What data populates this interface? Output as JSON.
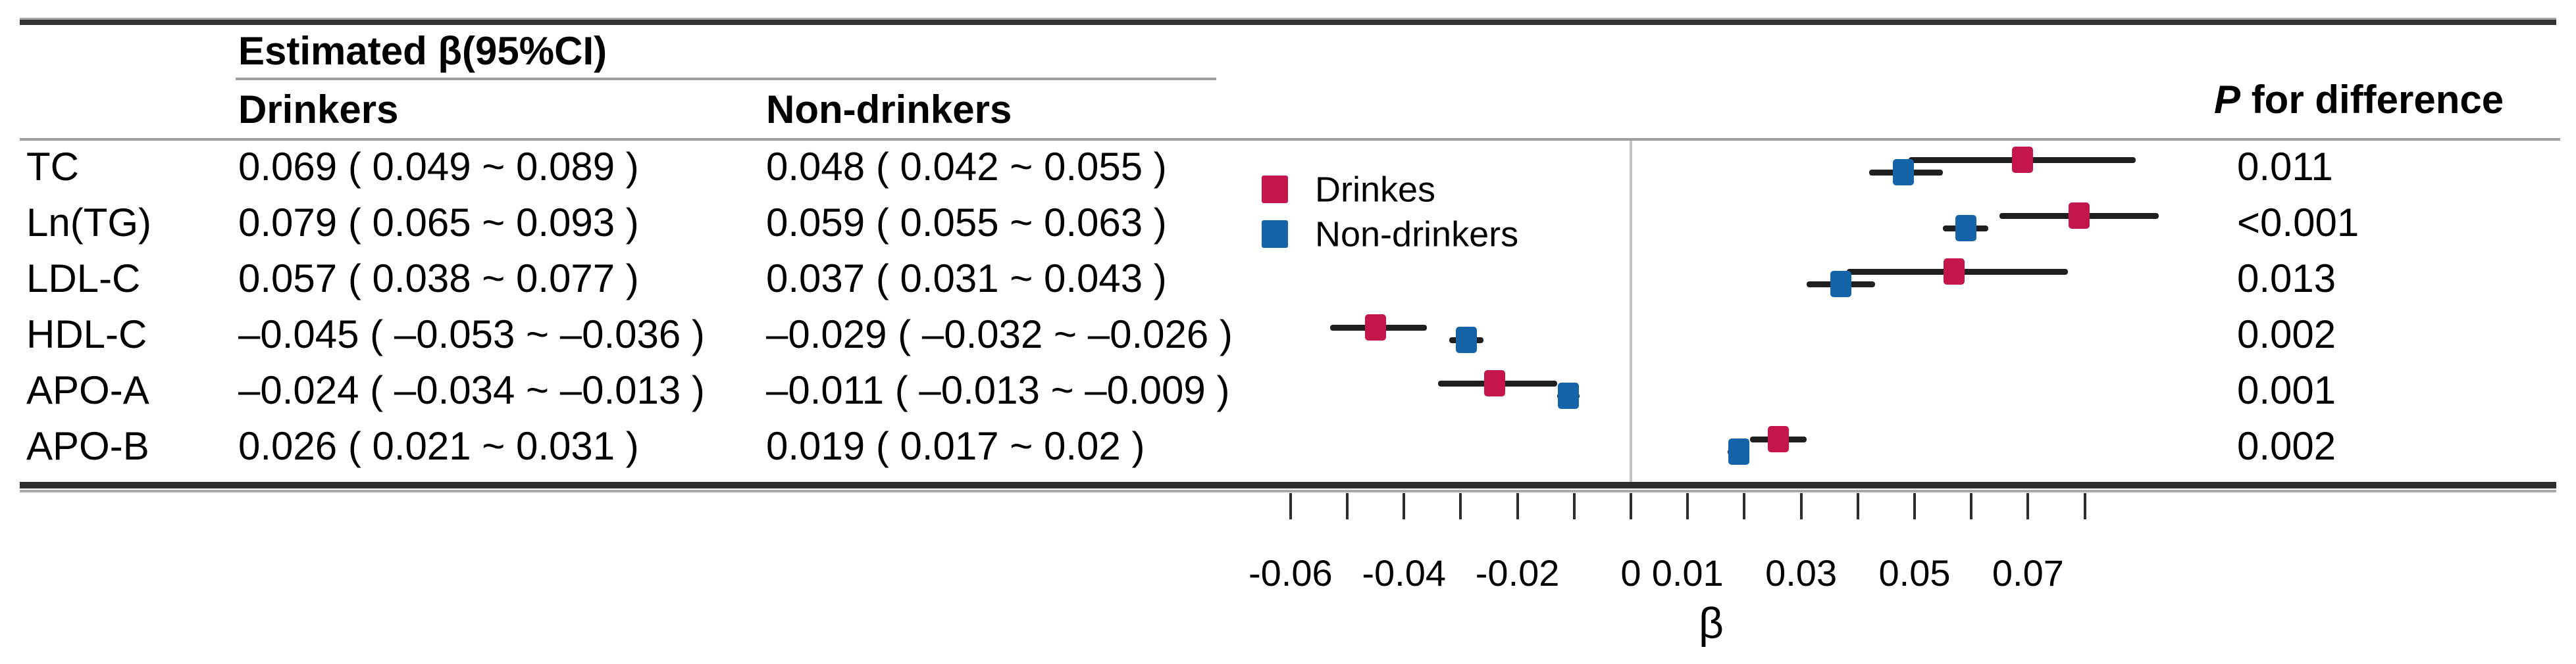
{
  "table": {
    "group_header": "Estimated β(95%CI)",
    "col_drinkers": "Drinkers",
    "col_nondrinkers": "Non-drinkers",
    "p_header_italic": "P",
    "p_header_rest": " for difference",
    "rows": [
      {
        "label": "TC",
        "drinkers": "0.069 ( 0.049 ~ 0.089 )",
        "nondrinkers": "0.048 ( 0.042 ~ 0.055 )",
        "p": "0.011"
      },
      {
        "label": "Ln(TG)",
        "drinkers": "0.079 ( 0.065 ~ 0.093 )",
        "nondrinkers": "0.059 ( 0.055 ~ 0.063 )",
        "p": "<0.001"
      },
      {
        "label": "LDL-C",
        "drinkers": "0.057 ( 0.038 ~ 0.077 )",
        "nondrinkers": "0.037 ( 0.031 ~ 0.043 )",
        "p": "0.013"
      },
      {
        "label": "HDL-C",
        "drinkers": "–0.045 ( –0.053 ~ –0.036 )",
        "nondrinkers": "–0.029 ( –0.032 ~ –0.026 )",
        "p": "0.002"
      },
      {
        "label": "APO-A",
        "drinkers": "–0.024 ( –0.034 ~ –0.013 )",
        "nondrinkers": "–0.011 ( –0.013 ~ –0.009 )",
        "p": "0.001"
      },
      {
        "label": "APO-B",
        "drinkers": "0.026 ( 0.021 ~ 0.031 )",
        "nondrinkers": "0.019 ( 0.017 ~ 0.02 )",
        "p": "0.002"
      }
    ]
  },
  "legend": {
    "drinkers": "Drinkes",
    "nondrinkers": "Non-drinkers"
  },
  "colors": {
    "drinkers": "#c4164a",
    "nondrinkers": "#1563a8",
    "whisker": "#1f1f1f",
    "refline": "#c4c4c4"
  },
  "chart_data": {
    "type": "forest",
    "title": "",
    "xlabel": "β",
    "categories": [
      "TC",
      "Ln(TG)",
      "LDL-C",
      "HDL-C",
      "APO-A",
      "APO-B"
    ],
    "series": [
      {
        "name": "Drinkes",
        "color": "#c4164a",
        "points": [
          {
            "beta": 0.069,
            "lo": 0.049,
            "hi": 0.089
          },
          {
            "beta": 0.079,
            "lo": 0.065,
            "hi": 0.093
          },
          {
            "beta": 0.057,
            "lo": 0.038,
            "hi": 0.077
          },
          {
            "beta": -0.045,
            "lo": -0.053,
            "hi": -0.036
          },
          {
            "beta": -0.024,
            "lo": -0.034,
            "hi": -0.013
          },
          {
            "beta": 0.026,
            "lo": 0.021,
            "hi": 0.031
          }
        ]
      },
      {
        "name": "Non-drinkers",
        "color": "#1563a8",
        "points": [
          {
            "beta": 0.048,
            "lo": 0.042,
            "hi": 0.055
          },
          {
            "beta": 0.059,
            "lo": 0.055,
            "hi": 0.063
          },
          {
            "beta": 0.037,
            "lo": 0.031,
            "hi": 0.043
          },
          {
            "beta": -0.029,
            "lo": -0.032,
            "hi": -0.026
          },
          {
            "beta": -0.011,
            "lo": -0.013,
            "hi": -0.009
          },
          {
            "beta": 0.019,
            "lo": 0.017,
            "hi": 0.02
          }
        ]
      }
    ],
    "refline": 0,
    "xlim": [
      -0.065,
      0.082
    ],
    "minor_ticks": [
      -0.06,
      -0.05,
      -0.04,
      -0.03,
      -0.02,
      -0.01,
      0,
      0.01,
      0.02,
      0.03,
      0.04,
      0.05,
      0.06,
      0.07,
      0.08
    ],
    "tick_labels": [
      {
        "v": -0.06,
        "t": "-0.06"
      },
      {
        "v": -0.04,
        "t": "-0.04"
      },
      {
        "v": -0.02,
        "t": "-0.02"
      },
      {
        "v": 0,
        "t": "0"
      },
      {
        "v": 0.01,
        "t": "0.01"
      },
      {
        "v": 0.03,
        "t": "0.03"
      },
      {
        "v": 0.05,
        "t": "0.05"
      },
      {
        "v": 0.07,
        "t": "0.07"
      }
    ],
    "grid": false,
    "legend_position": "inside-top-left-of-plot"
  }
}
